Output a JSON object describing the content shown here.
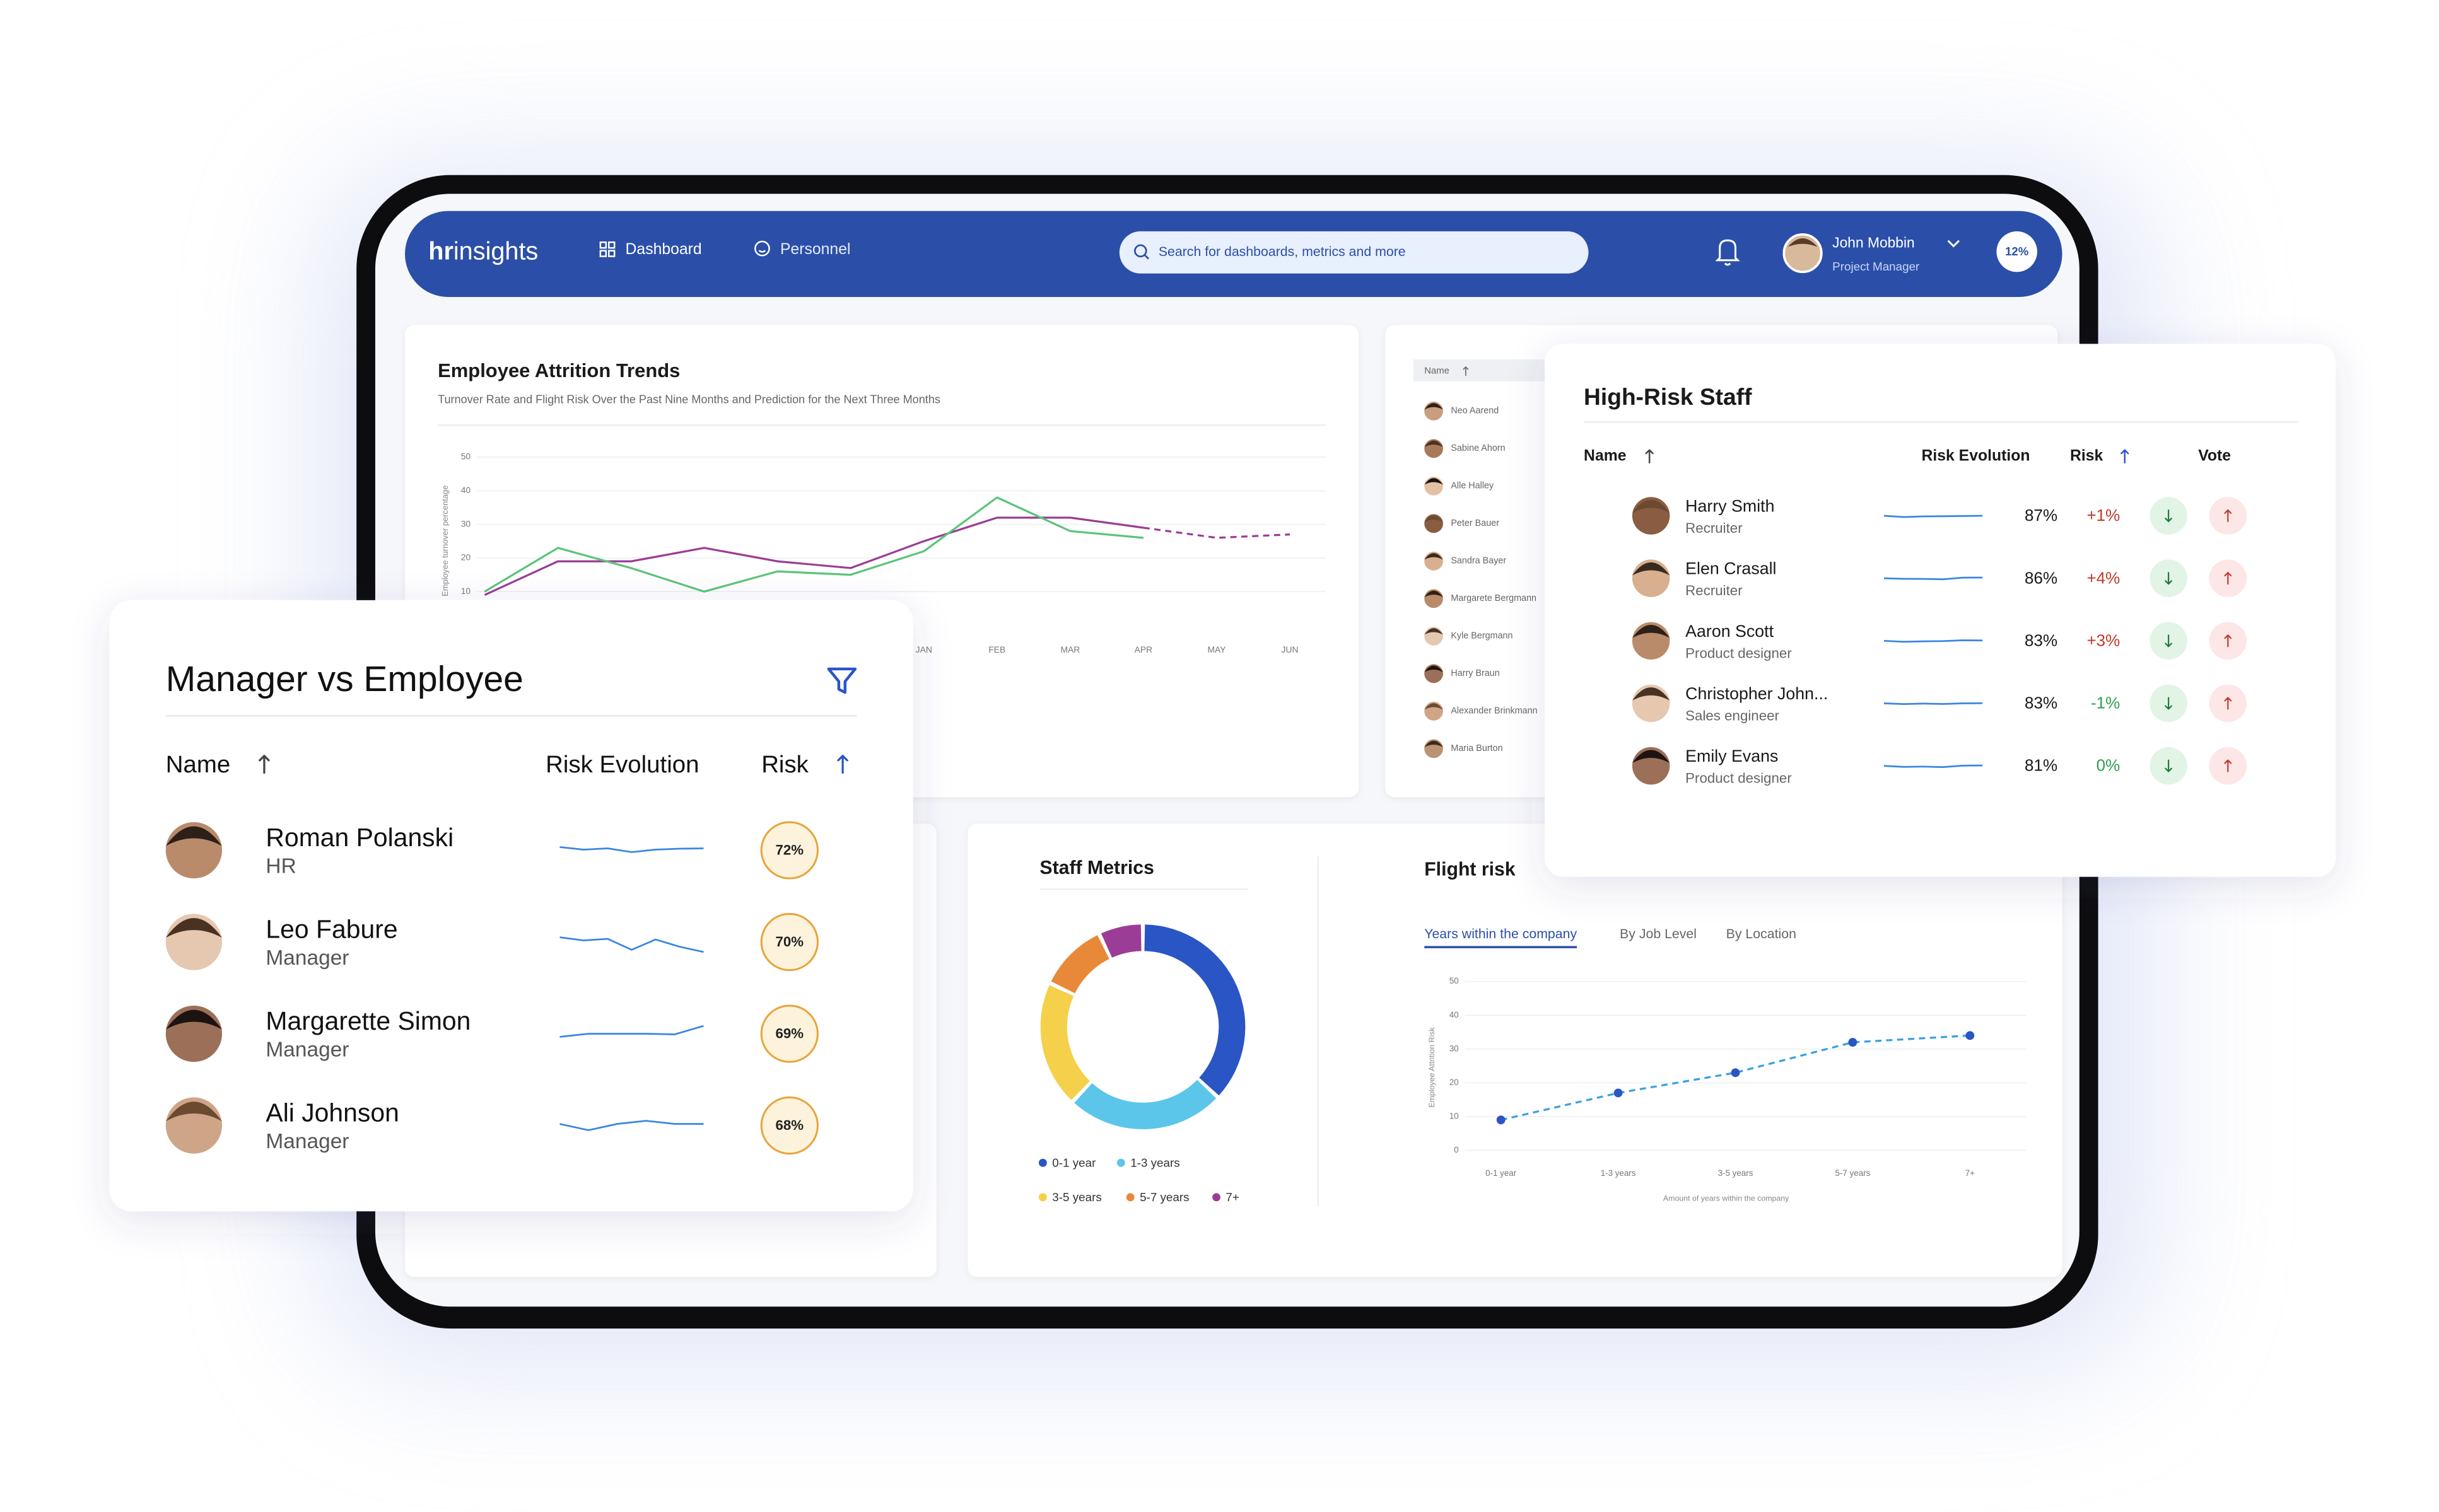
{
  "nav": {
    "logo": {
      "bold": "hr",
      "regular": "insights"
    },
    "menu": [
      "Dashboard",
      "Personnel"
    ],
    "search": "Search for dashboards, metrics and more",
    "user": {
      "name": "John Mobbin",
      "role": "Project Manager"
    },
    "badge": "12%"
  },
  "chart_data": [
    {
      "type": "line",
      "title": "Employee Attrition Trends",
      "subtitle": "Turnover Rate and  Flight Risk Over the Past Nine Months and Prediction for the Next Three Months",
      "y_label": "Employee turnover percentage",
      "categories": [
        null,
        null,
        null,
        null,
        null,
        null,
        "JAN",
        "FEB",
        "MAR",
        "APR",
        "MAY",
        "JUN"
      ],
      "series": [
        {
          "color": "#9b3d96",
          "values": [
            9,
            19,
            19,
            23,
            19,
            17,
            25,
            32,
            32,
            29,
            null,
            null
          ]
        },
        {
          "color": "#9b3d96",
          "dashed": true,
          "values": [
            null,
            null,
            null,
            null,
            null,
            null,
            null,
            null,
            null,
            29,
            26,
            27
          ]
        },
        {
          "color": "#5cc47a",
          "values": [
            10,
            23,
            17,
            10,
            16,
            15,
            22,
            38,
            28,
            26,
            null,
            null
          ]
        }
      ],
      "ylim": [
        0,
        50
      ],
      "yticks": [
        10,
        20,
        30,
        40,
        50
      ],
      "grid": true
    },
    {
      "type": "donut",
      "title": "Staff Metrics",
      "categories": [
        "0-1 year",
        "1-3 years",
        "3-5 years",
        "5-7 years",
        "7+"
      ],
      "values": [
        37,
        25,
        20,
        11,
        7
      ],
      "colors": [
        "#2a55c4",
        "#5bc6ea",
        "#f5d04a",
        "#e8893a",
        "#9b3d96"
      ]
    },
    {
      "type": "line",
      "title": "Flight risk",
      "tabs": [
        "Years within the company",
        "By Job Level",
        "By Location"
      ],
      "active_tab": 0,
      "y_label": "Employee Attrition Risk",
      "x_label": "Amount of years within the company",
      "categories": [
        "0-1 year",
        "1-3 years",
        "3-5 years",
        "5-7 years",
        "7+"
      ],
      "series": [
        {
          "color": "#3aa0e0",
          "marker_color": "#2a55c4",
          "dashed": true,
          "values": [
            9,
            17,
            23,
            32,
            34
          ]
        }
      ],
      "ylim": [
        0,
        50
      ],
      "yticks": [
        0,
        10,
        20,
        30,
        40,
        50
      ],
      "grid": true
    }
  ],
  "personnel_list": {
    "header": "Name",
    "names": [
      "Neo Aarend",
      "Sabine Ahorn",
      "Alle Halley",
      "Peter Bauer",
      "Sandra Bayer",
      "Margarete Bergmann",
      "Kyle Bergmann",
      "Harry Braun",
      "Alexander Brinkmann",
      "Maria Burton"
    ]
  },
  "high_risk_staff": {
    "title": "High-Risk Staff",
    "columns": [
      "Name",
      "Risk Evolution",
      "Risk",
      "Vote"
    ],
    "trend_range": [
      0,
      10
    ],
    "rows": [
      {
        "name": "Harry Smith",
        "role": "Recruiter",
        "trend": [
          5,
          4,
          4.5,
          4.6,
          4.8,
          5
        ],
        "risk": "87%",
        "change": "+1%"
      },
      {
        "name": "Elen Crasall",
        "role": "Recruiter",
        "trend": [
          5,
          4.6,
          4.5,
          4.2,
          5.5,
          5.6
        ],
        "risk": "86%",
        "change": "+4%"
      },
      {
        "name": "Aaron Scott",
        "role": "Product designer",
        "trend": [
          5,
          4.2,
          4.6,
          4.8,
          5.4,
          5.3
        ],
        "risk": "83%",
        "change": "+3%"
      },
      {
        "name": "Christopher John...",
        "role": "Sales engineer",
        "trend": [
          5,
          4.4,
          4.8,
          4.5,
          5,
          5.1
        ],
        "risk": "83%",
        "change": "-1%"
      },
      {
        "name": "Emily Evans",
        "role": "Product designer",
        "trend": [
          5,
          4.2,
          4.4,
          4,
          5.2,
          5.3
        ],
        "risk": "81%",
        "change": "0%"
      }
    ]
  },
  "manager_vs_employee": {
    "title": "Manager vs Employee",
    "columns": [
      "Name",
      "Risk Evolution",
      "Risk"
    ],
    "trend_range": [
      0,
      10
    ],
    "rows": [
      {
        "name": "Roman Polanski",
        "role": "HR",
        "trend": [
          6,
          5.2,
          5.6,
          4.4,
          5.2,
          5.5,
          5.6
        ],
        "risk": "72%"
      },
      {
        "name": "Leo Fabure",
        "role": "Manager",
        "trend": [
          6.5,
          5.5,
          6,
          2.5,
          5.8,
          3.5,
          1.8
        ],
        "risk": "70%"
      },
      {
        "name": "Margarette Simon",
        "role": "Manager",
        "trend": [
          4,
          5,
          5,
          5,
          4.8,
          7.5
        ],
        "risk": "69%"
      },
      {
        "name": "Ali Johnson",
        "role": "Manager",
        "trend": [
          5.5,
          3.5,
          5.5,
          6.5,
          5.5,
          5.5
        ],
        "risk": "68%"
      }
    ]
  }
}
